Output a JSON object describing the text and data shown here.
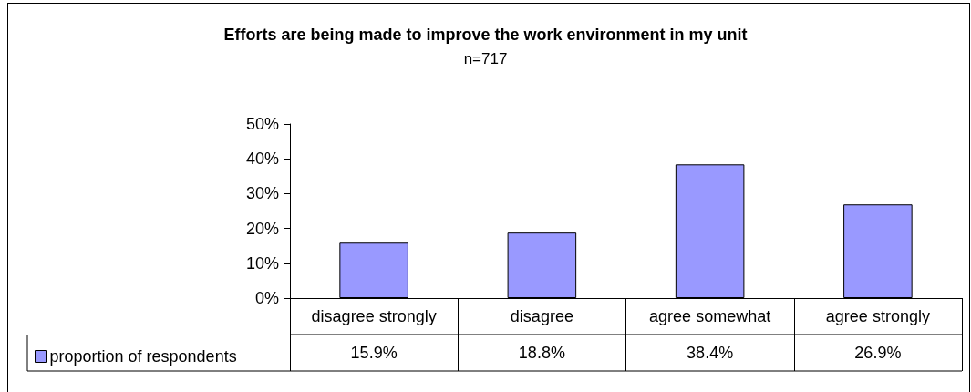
{
  "chart_data": {
    "type": "bar",
    "title": "Efforts are being made to improve the work environment in my unit",
    "subtitle": "n=717",
    "categories": [
      "disagree strongly",
      "disagree",
      "agree somewhat",
      "agree strongly"
    ],
    "series": [
      {
        "name": "proportion of respondents",
        "color": "#9999ff",
        "values": [
          15.9,
          18.8,
          38.4,
          26.9
        ],
        "value_labels": [
          "15.9%",
          "18.8%",
          "38.4%",
          "26.9%"
        ]
      }
    ],
    "ylim": [
      0,
      50
    ],
    "yticks": [
      {
        "value": 0,
        "label": "0%"
      },
      {
        "value": 10,
        "label": "10%"
      },
      {
        "value": 20,
        "label": "20%"
      },
      {
        "value": 30,
        "label": "30%"
      },
      {
        "value": 40,
        "label": "40%"
      },
      {
        "value": 50,
        "label": "50%"
      }
    ],
    "grid": false,
    "legend": "bottom left"
  }
}
